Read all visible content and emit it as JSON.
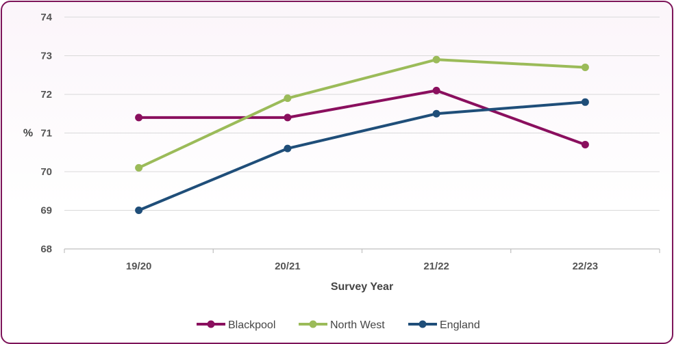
{
  "chart_data": {
    "type": "line",
    "title": "",
    "xlabel": "Survey Year",
    "ylabel": "%",
    "categories": [
      "19/20",
      "20/21",
      "21/22",
      "22/23"
    ],
    "ylim": [
      68,
      74
    ],
    "yticks": [
      68,
      69,
      70,
      71,
      72,
      73,
      74
    ],
    "grid": true,
    "legend_position": "bottom",
    "series": [
      {
        "name": "Blackpool",
        "color": "#8a0f5e",
        "values": [
          71.4,
          71.4,
          72.1,
          70.7
        ]
      },
      {
        "name": "North West",
        "color": "#9bbb59",
        "values": [
          70.1,
          71.9,
          72.9,
          72.7
        ]
      },
      {
        "name": "England",
        "color": "#1f4e79",
        "values": [
          69.0,
          70.6,
          71.5,
          71.8
        ]
      }
    ]
  }
}
